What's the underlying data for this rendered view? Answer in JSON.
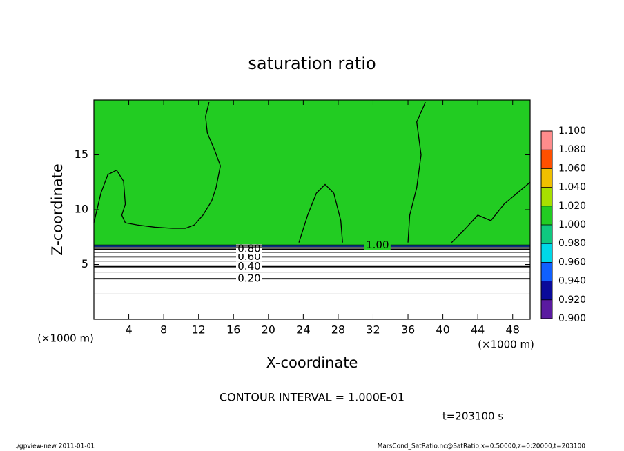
{
  "chart_data": {
    "type": "contour",
    "title": "saturation ratio",
    "xlabel": "X-coordinate",
    "ylabel": "Z-coordinate",
    "xunit": "(×1000 m)",
    "yunit": "(×1000 m)",
    "xlim": [
      0,
      50
    ],
    "ylim": [
      0,
      20
    ],
    "xticks": [
      4,
      8,
      12,
      16,
      20,
      24,
      28,
      32,
      36,
      40,
      44,
      48
    ],
    "yticks": [
      5,
      10,
      15
    ],
    "field": {
      "value": 1.0,
      "z_bottom": 6.7
    },
    "contours": [
      {
        "level": 0.1,
        "z": 2.3
      },
      {
        "level": 0.2,
        "z": 3.7,
        "label": "0.20"
      },
      {
        "level": 0.3,
        "z": 4.3
      },
      {
        "level": 0.4,
        "z": 4.8,
        "label": "0.40"
      },
      {
        "level": 0.5,
        "z": 5.3
      },
      {
        "level": 0.6,
        "z": 5.7,
        "label": "0.60"
      },
      {
        "level": 0.7,
        "z": 6.1
      },
      {
        "level": 0.8,
        "z": 6.4,
        "label": "0.80"
      },
      {
        "level": 0.9,
        "z": 6.6
      },
      {
        "level": 1.0,
        "z": 6.75,
        "label": "1.00"
      }
    ],
    "contour_lines": [
      {
        "level": 1.0,
        "x": [
          0,
          0.8,
          1.6,
          2.6,
          3.4,
          3.6,
          3.2,
          3.6,
          5,
          7,
          9,
          10.5,
          11.5,
          12.5,
          13.5,
          14,
          14.5,
          13.8,
          13,
          12.8,
          13.2
        ],
        "z": [
          8.8,
          11.5,
          13.2,
          13.6,
          12.6,
          10.5,
          9.5,
          8.8,
          8.6,
          8.4,
          8.3,
          8.3,
          8.6,
          9.5,
          10.8,
          12,
          14,
          15.5,
          17,
          18.5,
          19.8
        ]
      },
      {
        "level": 1.0,
        "x": [
          23.5,
          24.5,
          25.5,
          26.5,
          27.5,
          28.3,
          28.5
        ],
        "z": [
          7,
          9.5,
          11.5,
          12.3,
          11.5,
          9,
          7
        ]
      },
      {
        "level": 1.0,
        "x": [
          36,
          36.2,
          37,
          37.5,
          37,
          38
        ],
        "z": [
          7,
          9.5,
          12,
          15,
          18,
          19.8
        ]
      },
      {
        "level": 1.0,
        "x": [
          41,
          42.5,
          44,
          45.5,
          47,
          48.5,
          50
        ],
        "z": [
          7,
          8.2,
          9.5,
          9,
          10.5,
          11.5,
          12.5
        ]
      }
    ],
    "colorbar": {
      "levels": [
        0.9,
        0.92,
        0.94,
        0.96,
        0.98,
        1.0,
        1.02,
        1.04,
        1.06,
        1.08,
        1.1
      ],
      "colors": [
        "#5a1aa0",
        "#0a0a9a",
        "#1060ff",
        "#00d8e8",
        "#10c880",
        "#22cc22",
        "#a8e000",
        "#f0c000",
        "#ff5000",
        "#ff8c8c"
      ],
      "ticks": [
        {
          "value": 0.9,
          "label": "0.900"
        },
        {
          "value": 0.92,
          "label": "0.920"
        },
        {
          "value": 0.94,
          "label": "0.940"
        },
        {
          "value": 0.96,
          "label": "0.960"
        },
        {
          "value": 0.98,
          "label": "0.980"
        },
        {
          "value": 1.0,
          "label": "1.000"
        },
        {
          "value": 1.02,
          "label": "1.020"
        },
        {
          "value": 1.04,
          "label": "1.040"
        },
        {
          "value": 1.06,
          "label": "1.060"
        },
        {
          "value": 1.08,
          "label": "1.080"
        },
        {
          "value": 1.1,
          "label": "1.100"
        }
      ]
    },
    "interval_note": "CONTOUR INTERVAL = 1.000E-01",
    "time_note": "t=203100 s",
    "footer_left": "./gpview-new  2011-01-01",
    "footer_right": "MarsCond_SatRatio.nc@SatRatio,x=0:50000,z=0:20000,t=203100"
  }
}
